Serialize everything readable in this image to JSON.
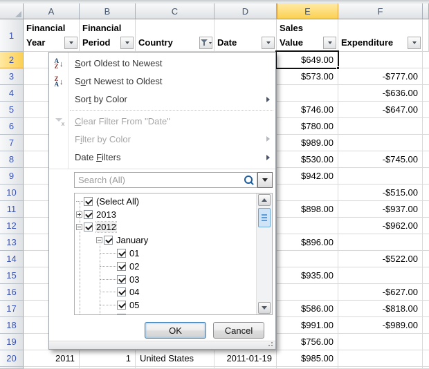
{
  "sheet": {
    "col_letters": [
      "A",
      "B",
      "C",
      "D",
      "E",
      "F"
    ],
    "selected_cell": "E2",
    "headers": {
      "a": {
        "line1": "Financial",
        "line2": "Year"
      },
      "b": {
        "line1": "Financial",
        "line2": "Period"
      },
      "c": {
        "line1": "",
        "line2": "Country"
      },
      "d": {
        "line1": "",
        "line2": "Date"
      },
      "e": {
        "line1": "Sales",
        "line2": "Value"
      },
      "f": {
        "line1": "",
        "line2": "Expenditure"
      }
    },
    "rows": [
      {
        "n": "2",
        "a": "",
        "b": "",
        "c": "",
        "d": "",
        "e": "$649.00",
        "f": "",
        "sel": "true"
      },
      {
        "n": "3",
        "e": "$573.00",
        "f": "-$777.00"
      },
      {
        "n": "4",
        "e": "",
        "f": "-$636.00"
      },
      {
        "n": "5",
        "e": "$746.00",
        "f": "-$647.00"
      },
      {
        "n": "6",
        "e": "$780.00",
        "f": ""
      },
      {
        "n": "7",
        "e": "$989.00",
        "f": ""
      },
      {
        "n": "8",
        "e": "$530.00",
        "f": "-$745.00"
      },
      {
        "n": "9",
        "e": "$942.00",
        "f": ""
      },
      {
        "n": "10",
        "e": "",
        "f": "-$515.00"
      },
      {
        "n": "11",
        "e": "$898.00",
        "f": "-$937.00"
      },
      {
        "n": "12",
        "e": "",
        "f": "-$962.00"
      },
      {
        "n": "13",
        "e": "$896.00",
        "f": ""
      },
      {
        "n": "14",
        "e": "",
        "f": "-$522.00"
      },
      {
        "n": "15",
        "e": "$935.00",
        "f": ""
      },
      {
        "n": "16",
        "e": "",
        "f": "-$627.00"
      },
      {
        "n": "17",
        "e": "$586.00",
        "f": "-$818.00"
      },
      {
        "n": "18",
        "e": "$991.00",
        "f": "-$989.00"
      },
      {
        "n": "19",
        "e": "$756.00",
        "f": ""
      },
      {
        "n": "20",
        "a": "2011",
        "b": "1",
        "c": "United States",
        "d": "2011-01-19",
        "e": "$985.00",
        "f": ""
      }
    ]
  },
  "filter_menu": {
    "column": "Date",
    "items": [
      {
        "pre": "",
        "accel": "S",
        "post": "ort Oldest to Newest"
      },
      {
        "pre": "S",
        "accel": "o",
        "post": "rt Newest to Oldest"
      },
      {
        "pre": "Sor",
        "accel": "t",
        "post": " by Color"
      },
      {
        "pre": "",
        "accel": "C",
        "post": "lear Filter From \"Date\""
      },
      {
        "pre": "F",
        "accel": "i",
        "post": "lter by Color"
      },
      {
        "pre": "Date ",
        "accel": "F",
        "post": "ilters"
      }
    ],
    "search_placeholder": "Search (All)",
    "tree": [
      {
        "label": "(Select All)",
        "level": "0",
        "expand": "none",
        "checked": "true"
      },
      {
        "label": "2013",
        "level": "0",
        "expand": "plus",
        "checked": "true"
      },
      {
        "label": "2012",
        "level": "0",
        "expand": "minus",
        "checked": "true",
        "focus": "true"
      },
      {
        "label": "January",
        "level": "1",
        "expand": "minus",
        "checked": "true"
      },
      {
        "label": "01",
        "level": "2",
        "expand": "none",
        "checked": "true"
      },
      {
        "label": "02",
        "level": "2",
        "expand": "none",
        "checked": "true"
      },
      {
        "label": "03",
        "level": "2",
        "expand": "none",
        "checked": "true"
      },
      {
        "label": "04",
        "level": "2",
        "expand": "none",
        "checked": "true"
      },
      {
        "label": "05",
        "level": "2",
        "expand": "none",
        "checked": "true"
      },
      {
        "label": "",
        "level": "2",
        "expand": "none",
        "checked": "true",
        "partial": "true"
      }
    ],
    "ok_label": "OK",
    "cancel_label": "Cancel"
  },
  "colors": {
    "selected_header_fill": "#fbd051",
    "grid_line": "#d9d9d9",
    "scroll_thumb_accent": "#5b9bd5",
    "row_header_text": "#3a53b4",
    "disabled_menu_text": "#a5a5a5"
  }
}
